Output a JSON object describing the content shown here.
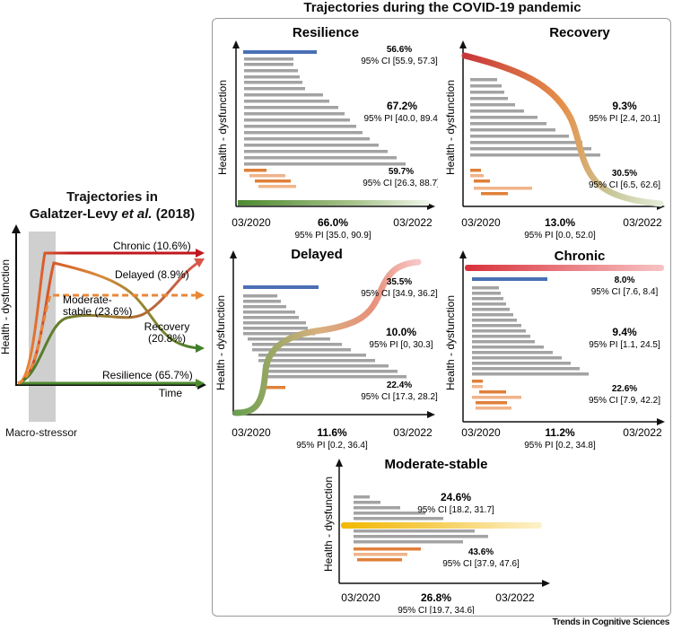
{
  "left_panel": {
    "title_line1": "Trajectories in",
    "title_line2_prefix": "Galatzer-Levy ",
    "title_line2_italic": "et al.",
    "title_line2_suffix": " (2018)",
    "ylabel": "Health - dysfunction",
    "xlabel": "Time",
    "stressor_label": "Macro-stressor",
    "labels": {
      "chronic": "Chronic (10.6%)",
      "delayed": "Delayed (8.9%)",
      "moderate_1": "Moderate-",
      "moderate_2": "stable (23.6%)",
      "recovery_1": "Recovery",
      "recovery_2": "(20.8%)",
      "resilience": "Resilience (65.7%)"
    }
  },
  "main_title": "Trajectories during the COVID-19 pandemic",
  "source": "Trends in Cognitive Sciences",
  "panels": {
    "resilience": {
      "title": "Resilience",
      "ylabel": "Health - dysfunction",
      "x_start": "03/2020",
      "x_end": "03/2022",
      "top_pct": "56.6%",
      "top_ci": "95% CI [55.9, 57.3]",
      "mid_pct": "67.2%",
      "mid_ci": "95% PI [40.0, 89.4]",
      "low_pct": "59.7%",
      "low_ci": "95% CI [26.3, 88.7]",
      "bottom_pct": "66.0%",
      "bottom_ci": "95% PI [35.0, 90.9]"
    },
    "recovery": {
      "title": "Recovery",
      "ylabel": "Health - dysfunction",
      "x_start": "03/2020",
      "x_end": "03/2022",
      "mid_pct": "9.3%",
      "mid_ci": "95% PI [2.4, 20.1]",
      "low_pct": "30.5%",
      "low_ci": "95% CI [6.5, 62.6]",
      "bottom_pct": "13.0%",
      "bottom_ci": "95% PI [0.0, 52.0]"
    },
    "delayed": {
      "title": "Delayed",
      "ylabel": "Health - dysfunction",
      "x_start": "03/2020",
      "x_end": "03/2022",
      "top_pct": "35.5%",
      "top_ci": "95% CI [34.9, 36.2]",
      "mid_pct": "10.0%",
      "mid_ci": "95% PI [0, 30.3]",
      "low_pct": "22.4%",
      "low_ci": "95% CI [17.3, 28.2]",
      "bottom_pct": "11.6%",
      "bottom_ci": "95% PI [0.2, 36.4]"
    },
    "chronic": {
      "title": "Chronic",
      "ylabel": "Health - dysfunction",
      "x_start": "03/2020",
      "x_end": "03/2022",
      "top_pct": "8.0%",
      "top_ci": "95% CI [7.6, 8.4]",
      "mid_pct": "9.4%",
      "mid_ci": "95% PI [1.1, 24.5]",
      "low_pct": "22.6%",
      "low_ci": "95% CI [7.9, 42.2]",
      "bottom_pct": "11.2%",
      "bottom_ci": "95% PI [0.2, 34.8]"
    },
    "moderate": {
      "title": "Moderate-stable",
      "ylabel": "Health - dysfunction",
      "x_start": "03/2020",
      "x_end": "03/2022",
      "top_pct": "24.6%",
      "top_ci": "95% CI [18.2, 31.7]",
      "low_pct": "43.6%",
      "low_ci": "95% CI [37.9, 47.6]",
      "bottom_pct": "26.8%",
      "bottom_ci": "95% CI [19.7, 34.6]"
    }
  },
  "colors": {
    "grey_bar": "#a3a3a3",
    "blue_bar": "#4a6fb5",
    "orange_bar": "#e0803a",
    "light_orange_bar": "#f0b48a",
    "resilience_green": "#4e8a30",
    "chronic_red": "#c0181e",
    "moderate_orange": "#e8883a",
    "yellow": "#f2b800"
  }
}
